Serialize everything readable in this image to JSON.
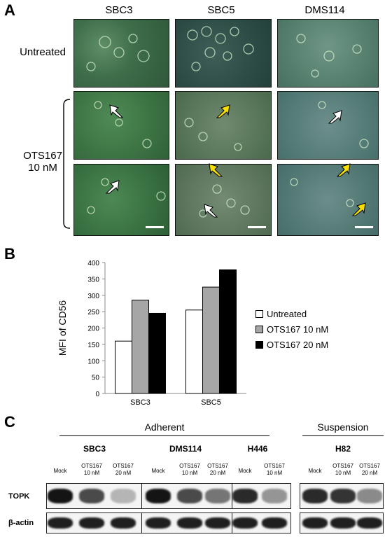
{
  "panel_a": {
    "letter": "A",
    "columns": [
      "SBC3",
      "SBC5",
      "DMS114"
    ],
    "row_untreated": "Untreated",
    "row_treated_line1": "OTS167",
    "row_treated_line2": "10 nM"
  },
  "panel_b": {
    "letter": "B",
    "chart_data": {
      "type": "bar",
      "categories": [
        "SBC3",
        "SBC5"
      ],
      "series": [
        {
          "name": "Untreated",
          "values": [
            160,
            255
          ],
          "color": "#ffffff"
        },
        {
          "name": "OTS167 10 nM",
          "values": [
            285,
            325
          ],
          "color": "#a6a6a6"
        },
        {
          "name": "OTS167 20 nM",
          "values": [
            245,
            378
          ],
          "color": "#000000"
        }
      ],
      "ylabel": "MFI of CD56",
      "ylim": [
        0,
        400
      ],
      "yticks": [
        "0",
        "50",
        "100",
        "150",
        "200",
        "250",
        "300",
        "350",
        "400"
      ],
      "legend": "right"
    }
  },
  "panel_c": {
    "letter": "C",
    "group_adherent": "Adherent",
    "group_suspension": "Suspension",
    "cell_lines": [
      "SBC3",
      "DMS114",
      "H446",
      "H82"
    ],
    "lanes": [
      {
        "label": "Mock"
      },
      {
        "label": "OTS167\n10 nM"
      },
      {
        "label": "OTS167\n20 nM"
      },
      {
        "label": "Mock"
      },
      {
        "label": "OTS167\n10 nM"
      },
      {
        "label": "OTS167\n20 nM"
      },
      {
        "label": "Mock"
      },
      {
        "label": "OTS167\n10 nM"
      },
      {
        "label": "Mock"
      },
      {
        "label": "OTS167\n10 nM"
      },
      {
        "label": "OTS167\n20 nM"
      }
    ],
    "row_topk": "TOPK",
    "row_actin": "β-actin",
    "topk_intensity": [
      1.0,
      0.75,
      0.25,
      1.0,
      0.75,
      0.55,
      0.9,
      0.4,
      0.9,
      0.85,
      0.45
    ],
    "actin_intensity": [
      0.95,
      0.95,
      0.95,
      0.95,
      0.95,
      0.95,
      0.95,
      0.95,
      0.95,
      0.95,
      0.95
    ]
  }
}
